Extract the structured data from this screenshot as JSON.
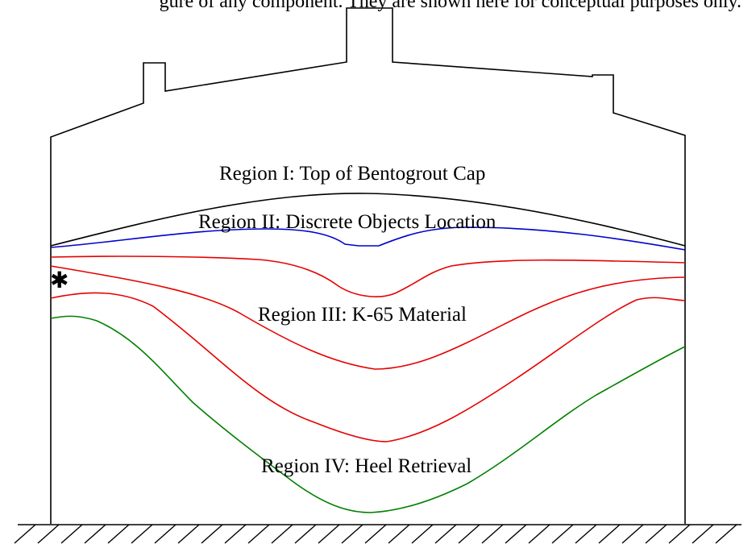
{
  "caption_fragment": "gure of any component. They are shown here for conceptual purposes only.",
  "regions": {
    "r1": "Region I: Top of Bentogrout Cap",
    "r2": "Region II: Discrete Objects Location",
    "r3": "Region III: K-65 Material",
    "r4": "Region IV: Heel Retrieval"
  },
  "marker": "✱",
  "colors": {
    "outline": "#000000",
    "blue": "#0000cc",
    "red": "#e60000",
    "green": "#008000"
  }
}
